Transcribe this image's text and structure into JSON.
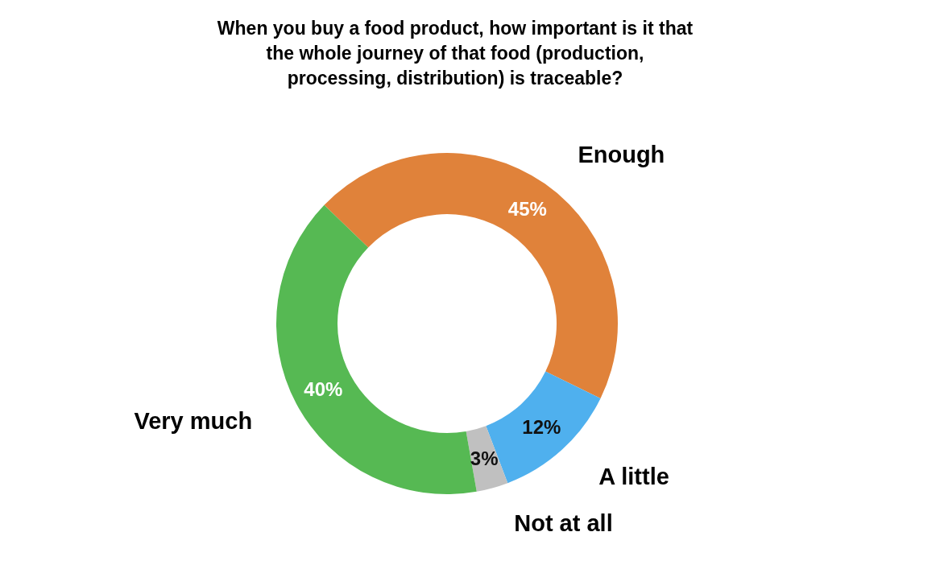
{
  "chart_data": {
    "type": "donut",
    "title": "When you buy a food product, how important is it that the whole journey of that food (production, processing, distribution) is traceable?",
    "categories": [
      "Enough",
      "A little",
      "Not at all",
      "Very much"
    ],
    "values": [
      45,
      12,
      3,
      40
    ],
    "colors": [
      "#e0823a",
      "#4fb0ee",
      "#c0c0c0",
      "#56b953"
    ],
    "value_labels": [
      "45%",
      "12%",
      "3%",
      "40%"
    ]
  }
}
